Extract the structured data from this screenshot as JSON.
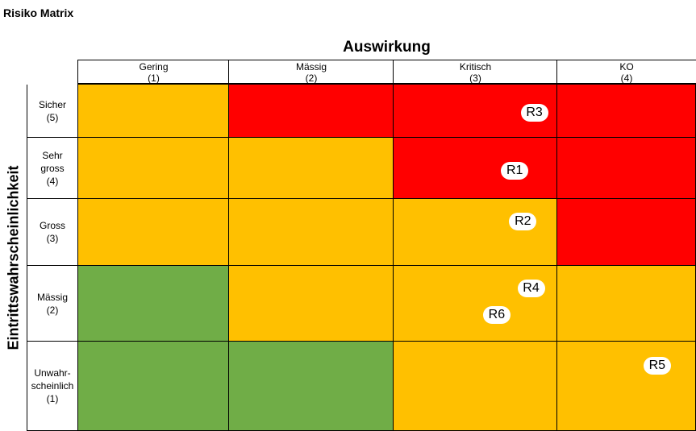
{
  "chart_data": {
    "type": "heatmap",
    "title": "Risiko Matrix",
    "xlabel": "Auswirkung",
    "ylabel": "Eintrittswahrscheinlichkeit",
    "columns": [
      {
        "label": "Gering",
        "level": "(1)"
      },
      {
        "label": "Mässig",
        "level": "(2)"
      },
      {
        "label": "Kritisch",
        "level": "(3)"
      },
      {
        "label": "KO",
        "level": "(4)"
      }
    ],
    "rows": [
      {
        "lines": [
          "Sicher",
          "(5)"
        ]
      },
      {
        "lines": [
          "Sehr",
          "gross",
          "(4)"
        ]
      },
      {
        "lines": [
          "Gross",
          "(3)"
        ]
      },
      {
        "lines": [
          "Mässig",
          "(2)"
        ]
      },
      {
        "lines": [
          "Unwahr-",
          "scheinlich",
          "(1)"
        ]
      }
    ],
    "cells": [
      [
        "orange",
        "red",
        "red",
        "red"
      ],
      [
        "orange",
        "orange",
        "red",
        "red"
      ],
      [
        "orange",
        "orange",
        "orange",
        "red"
      ],
      [
        "green",
        "orange",
        "orange",
        "orange"
      ],
      [
        "green",
        "green",
        "orange",
        "orange"
      ]
    ],
    "colors": {
      "red": "#ff0000",
      "orange": "#ffc000",
      "green": "#70ad47"
    },
    "risks": [
      {
        "label": "R3",
        "impact": 3,
        "probability": 5
      },
      {
        "label": "R1",
        "impact": 3,
        "probability": 4
      },
      {
        "label": "R2",
        "impact": 3,
        "probability": 3
      },
      {
        "label": "R4",
        "impact": 3,
        "probability": 2
      },
      {
        "label": "R6",
        "impact": 3,
        "probability": 2
      },
      {
        "label": "R5",
        "impact": 4,
        "probability": 1
      }
    ]
  }
}
